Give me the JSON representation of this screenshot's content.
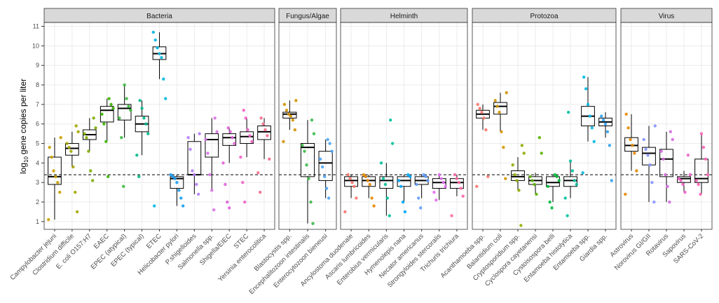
{
  "chart_data": {
    "type": "box",
    "y_label": {
      "base": "log",
      "subscript": "10",
      "rest": "gene copies per liter"
    },
    "ylim": [
      0.6,
      11.2
    ],
    "yticks": [
      1,
      2,
      3,
      4,
      5,
      6,
      7,
      8,
      9,
      10,
      11
    ],
    "grid": true,
    "hline": 3.4,
    "facets": [
      {
        "name": "Bacteria",
        "categories": [
          "Campylobacter jejuni",
          "Clostridium difficile",
          "E. coli O157:H7",
          "EAEC",
          "EPEC (atypical)",
          "EPEC (typical)",
          "ETEC",
          "Helicobacter pylori",
          "P.shigelloides",
          "Salmonella spp.",
          "Shigella/EIEC",
          "STEC",
          "Yersinia enterocolitica"
        ],
        "colors": [
          "#c9a000",
          "#a3a500",
          "#7cae00",
          "#39b600",
          "#3cba40",
          "#00b88a",
          "#00b6e0",
          "#1a9cf0",
          "#b47cf5",
          "#d970e8",
          "#e060d8",
          "#f062c4",
          "#f36a8a"
        ],
        "boxes": [
          [
            2.9,
            3.3,
            4.3,
            1.1,
            5.3
          ],
          [
            4.4,
            4.75,
            5.0,
            3.8,
            5.6
          ],
          [
            5.2,
            5.45,
            5.7,
            4.6,
            6.3
          ],
          [
            6.1,
            6.7,
            6.9,
            5.1,
            7.3
          ],
          [
            6.2,
            6.8,
            7.0,
            5.3,
            8.0
          ],
          [
            5.6,
            6.0,
            6.4,
            4.4,
            7.2
          ],
          [
            9.3,
            9.6,
            9.95,
            8.3,
            10.7
          ],
          [
            2.7,
            3.2,
            3.3,
            1.8,
            3.4
          ],
          [
            3.4,
            3.4,
            5.1,
            2.4,
            5.5
          ],
          [
            4.3,
            5.2,
            5.5,
            2.6,
            6.3
          ],
          [
            4.9,
            5.3,
            5.5,
            4.0,
            5.8
          ],
          [
            5.0,
            5.35,
            5.6,
            4.3,
            6.3
          ],
          [
            5.2,
            5.6,
            5.9,
            4.2,
            6.3
          ]
        ],
        "points": [
          [
            1.1,
            2.5,
            3.0,
            3.3,
            3.6,
            4.3,
            4.8,
            5.3
          ],
          [
            1.5,
            2.5,
            3.8,
            4.6,
            4.8,
            5.0,
            5.6,
            5.9
          ],
          [
            3.1,
            3.6,
            4.6,
            5.3,
            5.5,
            5.8,
            6.3
          ],
          [
            3.3,
            5.1,
            6.0,
            6.5,
            6.8,
            7.0,
            7.3
          ],
          [
            2.8,
            5.3,
            6.3,
            6.7,
            6.9,
            7.3,
            8.0
          ],
          [
            3.3,
            4.4,
            5.5,
            6.0,
            6.3,
            6.8,
            7.2
          ],
          [
            1.8,
            7.3,
            8.3,
            9.4,
            9.6,
            9.9,
            10.3,
            10.7
          ],
          [
            1.8,
            2.2,
            2.6,
            3.0,
            3.2,
            3.3,
            3.4
          ],
          [
            2.4,
            2.9,
            3.4,
            3.6,
            4.7,
            5.3,
            5.5
          ],
          [
            1.6,
            2.6,
            3.4,
            4.5,
            5.2,
            5.6,
            6.3
          ],
          [
            1.7,
            2.0,
            2.9,
            4.0,
            5.0,
            5.3,
            5.6,
            5.8
          ],
          [
            2.0,
            3.0,
            4.3,
            5.1,
            5.4,
            5.7,
            6.3,
            6.7
          ],
          [
            2.5,
            3.5,
            4.2,
            5.4,
            5.7,
            6.0,
            6.3
          ]
        ]
      },
      {
        "name": "Fungus/Algae",
        "categories": [
          "Blastocystis spp.",
          "Encephalitozoon intestinalis",
          "Enterocytozoon bieneusi"
        ],
        "colors": [
          "#d39200",
          "#3cb84a",
          "#4ea3f5"
        ],
        "boxes": [
          [
            6.3,
            6.5,
            6.6,
            5.7,
            7.2
          ],
          [
            3.3,
            4.8,
            5.0,
            0.9,
            6.2
          ],
          [
            3.1,
            4.0,
            4.6,
            2.2,
            5.2
          ]
        ],
        "points": [
          [
            5.1,
            5.7,
            6.2,
            6.4,
            6.5,
            6.7,
            7.0,
            7.2
          ],
          [
            0.9,
            2.0,
            3.2,
            3.9,
            4.6,
            4.9,
            5.5,
            6.2
          ],
          [
            2.2,
            2.7,
            3.3,
            3.8,
            4.2,
            4.6,
            5.0,
            5.2
          ]
        ]
      },
      {
        "name": "Helminth",
        "categories": [
          "Ancylostoma duodenale",
          "Ascaris lumbricoides",
          "Enterobius vermicularis",
          "Hymenolepis nana",
          "Necator americanus",
          "Strongyloides stercoralis",
          "Trichuris trichiura"
        ],
        "colors": [
          "#f8766d",
          "#e58700",
          "#00c19a",
          "#00a9ff",
          "#619cff",
          "#e76bf3",
          "#ff67a4"
        ],
        "boxes": [
          [
            2.8,
            3.1,
            3.3,
            2.2,
            3.4
          ],
          [
            2.8,
            3.1,
            3.3,
            2.2,
            3.4
          ],
          [
            2.7,
            3.1,
            3.3,
            1.3,
            4.0
          ],
          [
            2.8,
            3.1,
            3.3,
            2.0,
            3.4
          ],
          [
            2.9,
            3.1,
            3.3,
            2.2,
            3.4
          ],
          [
            2.7,
            3.0,
            3.2,
            2.1,
            3.4
          ],
          [
            2.7,
            3.0,
            3.2,
            2.3,
            3.4
          ]
        ],
        "points": [
          [
            1.5,
            2.2,
            2.8,
            3.0,
            3.2,
            3.4
          ],
          [
            1.8,
            2.2,
            2.9,
            3.1,
            3.3,
            3.4
          ],
          [
            1.3,
            2.2,
            2.9,
            3.2,
            4.0,
            5.0,
            6.2
          ],
          [
            1.5,
            2.0,
            2.8,
            3.1,
            3.3,
            3.4
          ],
          [
            1.7,
            2.2,
            2.9,
            3.1,
            3.3,
            3.4
          ],
          [
            2.1,
            2.5,
            2.8,
            3.0,
            3.2,
            3.4
          ],
          [
            1.3,
            2.3,
            2.7,
            3.0,
            3.2,
            3.4
          ]
        ]
      },
      {
        "name": "Protozoa",
        "categories": [
          "Acanthamoeba spp.",
          "Balantidium coli",
          "Cryptosporidium spp.",
          "Cyclospora cayetanensi",
          "Cystoisospora belli",
          "Entamoeba histolytica",
          "Entamoeba spp.",
          "Giardia spp."
        ],
        "colors": [
          "#f8766d",
          "#d39200",
          "#93aa00",
          "#5bb300",
          "#00ba38",
          "#00c19f",
          "#00b9e3",
          "#2fa0f0"
        ],
        "boxes": [
          [
            6.3,
            6.5,
            6.7,
            5.7,
            7.0
          ],
          [
            6.5,
            6.9,
            7.1,
            5.6,
            7.6
          ],
          [
            3.1,
            3.3,
            3.6,
            2.6,
            4.3
          ],
          [
            2.9,
            3.1,
            3.3,
            2.4,
            3.5
          ],
          [
            2.8,
            3.0,
            3.3,
            2.0,
            3.4
          ],
          [
            2.8,
            3.1,
            3.3,
            2.2,
            4.1
          ],
          [
            5.9,
            6.4,
            6.9,
            5.1,
            8.4
          ],
          [
            5.9,
            6.1,
            6.3,
            5.3,
            6.6
          ]
        ],
        "points": [
          [
            2.8,
            3.3,
            5.7,
            6.3,
            6.6,
            6.8,
            7.0
          ],
          [
            3.2,
            4.8,
            5.6,
            6.6,
            6.9,
            7.2,
            7.6
          ],
          [
            0.8,
            2.6,
            3.1,
            3.4,
            3.9,
            4.5,
            4.9
          ],
          [
            2.4,
            2.9,
            3.1,
            3.3,
            4.5,
            5.3
          ],
          [
            1.7,
            2.0,
            2.8,
            3.1,
            3.3,
            3.4
          ],
          [
            1.3,
            2.2,
            2.9,
            3.1,
            3.6,
            4.1,
            6.6
          ],
          [
            3.5,
            5.1,
            5.8,
            6.4,
            7.0,
            7.8,
            8.4
          ],
          [
            3.1,
            4.9,
            5.6,
            6.0,
            6.2,
            6.4
          ]
        ]
      },
      {
        "name": "Virus",
        "categories": [
          "Astrovirus",
          "Norovirus GI/GII",
          "Rotavirus",
          "Sapovirus",
          "SARS-CoV-2"
        ],
        "colors": [
          "#e58700",
          "#8494ff",
          "#d56ae0",
          "#f062c4",
          "#ff63b6"
        ],
        "boxes": [
          [
            4.6,
            4.9,
            5.3,
            3.6,
            6.5
          ],
          [
            3.9,
            4.5,
            4.8,
            2.0,
            5.9
          ],
          [
            3.3,
            4.2,
            4.7,
            2.0,
            5.6
          ],
          [
            3.0,
            3.2,
            3.3,
            2.5,
            3.6
          ],
          [
            3.0,
            3.2,
            4.2,
            2.4,
            5.5
          ]
        ],
        "points": [
          [
            2.4,
            3.6,
            4.5,
            4.9,
            5.2,
            5.8,
            6.5
          ],
          [
            2.0,
            3.0,
            3.9,
            4.4,
            4.7,
            5.2,
            5.9
          ],
          [
            2.0,
            2.8,
            3.4,
            4.2,
            4.6,
            5.2,
            5.6
          ],
          [
            2.5,
            2.9,
            3.1,
            3.2,
            3.4,
            4.4
          ],
          [
            2.4,
            2.9,
            3.1,
            3.4,
            4.2,
            4.8,
            5.5
          ]
        ]
      }
    ]
  }
}
